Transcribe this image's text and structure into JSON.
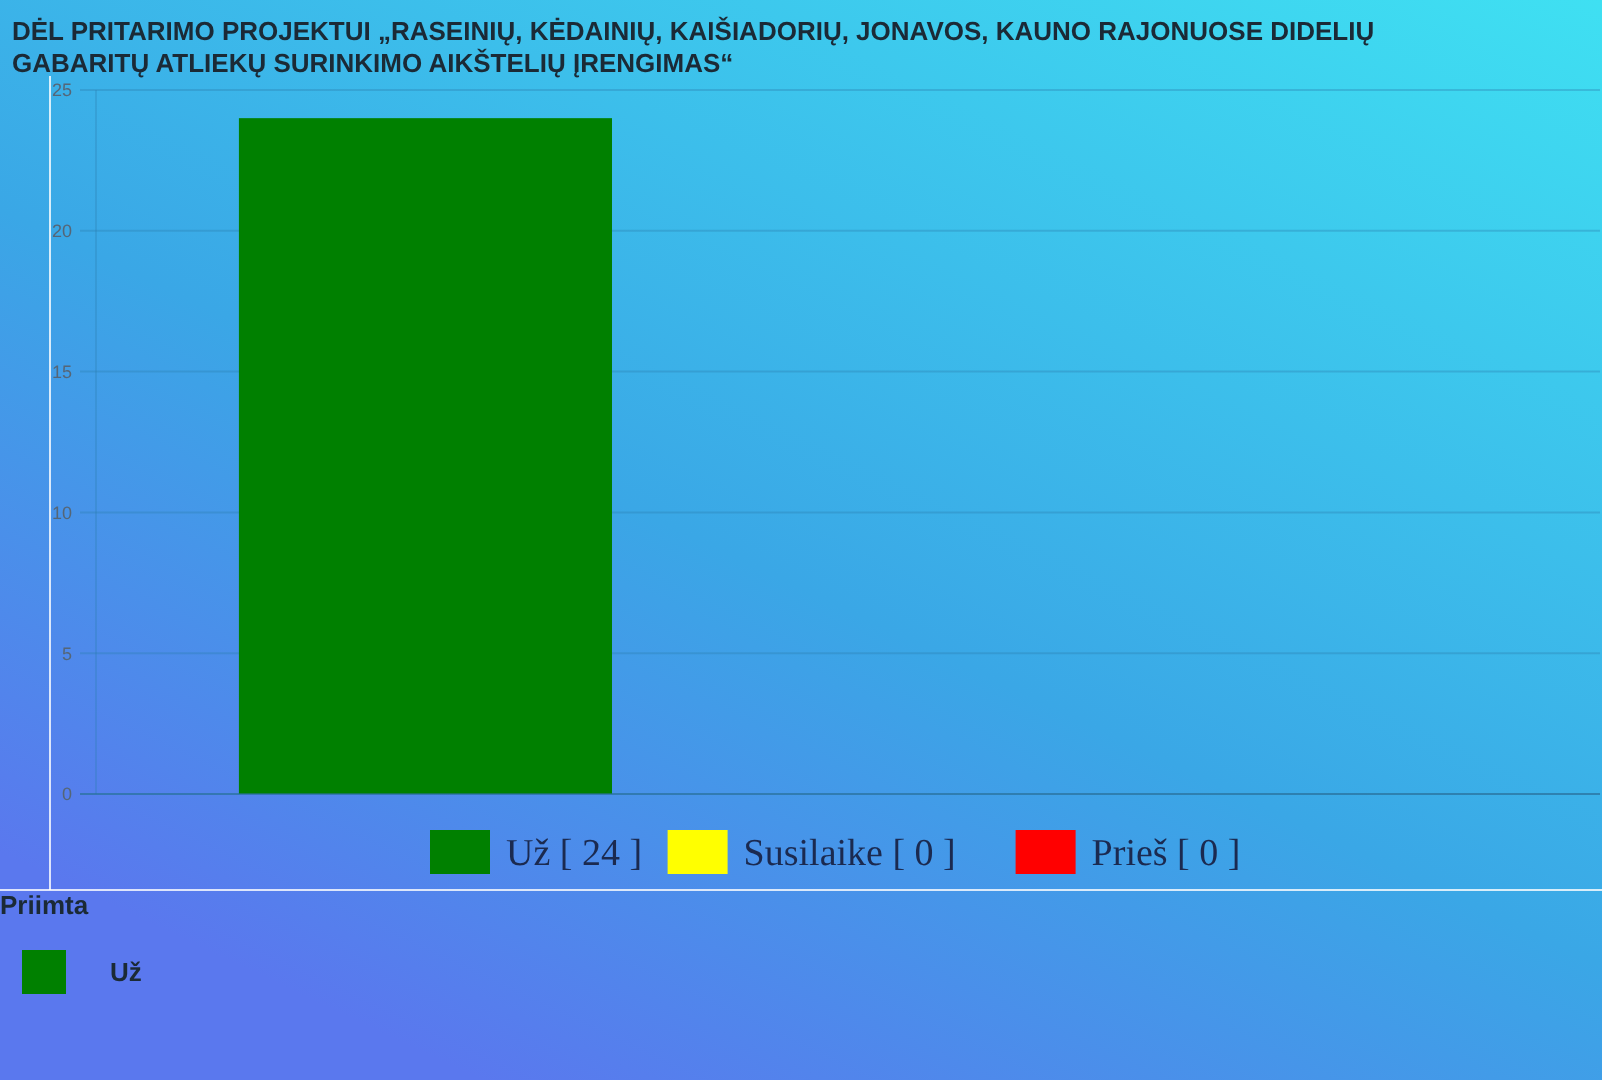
{
  "chart_data": {
    "type": "bar",
    "title": "DĖL PRITARIMO PROJEKTUI „RASEINIŲ, KĖDAINIŲ, KAIŠIADORIŲ, JONAVOS, KAUNO RAJONUOSE DIDELIŲ GABARITŲ ATLIEKŲ SURINKIMO AIKŠTELIŲ ĮRENGIMAS“",
    "categories": [
      null
    ],
    "series": [
      {
        "name": "Už [ 24 ]",
        "color": "#008000",
        "values": [
          24
        ]
      },
      {
        "name": "Susilaike [ 0 ]",
        "color": "#ffff00",
        "values": [
          0
        ]
      },
      {
        "name": "Prieš [ 0 ]",
        "color": "#ff0000",
        "values": [
          0
        ]
      }
    ],
    "ylim": [
      0,
      25
    ],
    "yticks": [
      0,
      5,
      10,
      15,
      20,
      25
    ],
    "grid": "y",
    "legend": "bottom",
    "annotations": [
      "Priimta",
      "Už"
    ]
  }
}
